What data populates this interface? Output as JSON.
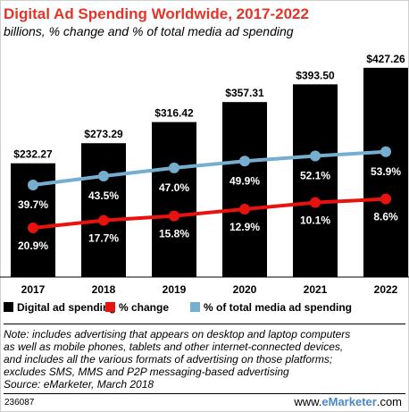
{
  "chart_data": {
    "type": "bar",
    "title": "Digital Ad Spending Worldwide, 2017-2022",
    "subtitle": "billions, % change and % of total media ad spending",
    "categories": [
      "2017",
      "2018",
      "2019",
      "2020",
      "2021",
      "2022"
    ],
    "series": [
      {
        "name": "Digital ad spending",
        "kind": "bar",
        "color": "#000000",
        "values": [
          232.27,
          273.29,
          316.42,
          357.31,
          393.5,
          427.26
        ],
        "labels": [
          "$232.27",
          "$273.29",
          "$316.42",
          "$357.31",
          "$393.50",
          "$427.26"
        ]
      },
      {
        "name": "% change",
        "kind": "line",
        "color": "#e8130f",
        "values": [
          20.9,
          17.7,
          15.8,
          12.9,
          10.1,
          8.6
        ],
        "labels": [
          "20.9%",
          "17.7%",
          "15.8%",
          "12.9%",
          "10.1%",
          "8.6%"
        ]
      },
      {
        "name": "% of total media ad spending",
        "kind": "line",
        "color": "#76aed0",
        "values": [
          39.7,
          43.5,
          47.0,
          49.9,
          52.1,
          53.9
        ],
        "labels": [
          "39.7%",
          "43.5%",
          "47.0%",
          "49.9%",
          "52.1%",
          "53.9%"
        ]
      }
    ],
    "legend_position": "bottom",
    "grid": false
  },
  "note_lines": [
    "Note: includes advertising that appears on desktop and laptop computers",
    "as well as mobile phones, tablets and other internet-connected devices,",
    "and includes all the various formats of advertising on those platforms;",
    "excludes SMS, MMS and P2P messaging-based advertising",
    "Source: eMarketer, March 2018"
  ],
  "chart_id": "236087",
  "brand": {
    "prefix": "www.",
    "name": "eMarketer",
    "suffix": ".com"
  }
}
